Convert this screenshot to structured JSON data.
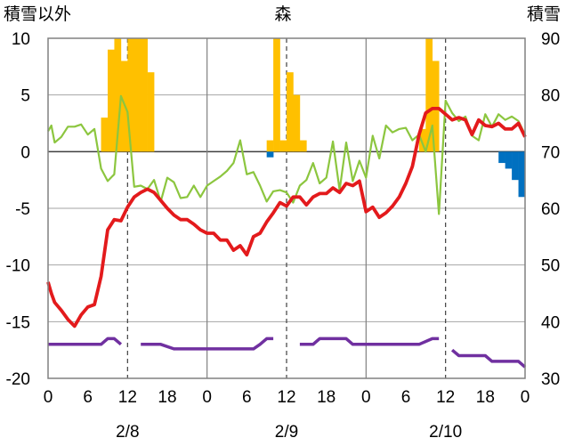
{
  "chart_data": {
    "type": "line",
    "title": "森",
    "left_axis_label": "積雪以外",
    "right_axis_label": "積雪",
    "left_ylim": [
      -20,
      10
    ],
    "left_ticks": [
      "10",
      "5",
      "0",
      "-5",
      "-10",
      "-15",
      "-20"
    ],
    "right_ylim": [
      30,
      90
    ],
    "right_ticks": [
      "90",
      "80",
      "70",
      "60",
      "50",
      "40",
      "30"
    ],
    "x_range_hours": [
      0,
      72
    ],
    "x_tick_labels": [
      "0",
      "6",
      "12",
      "18",
      "0",
      "6",
      "12",
      "18",
      "0",
      "6",
      "12",
      "18",
      "0"
    ],
    "date_labels": [
      "2/8",
      "2/9",
      "2/10"
    ],
    "grid": true,
    "series": [
      {
        "color": "#e31a1c",
        "axis": "left",
        "x": [
          0,
          0.5,
          1,
          2,
          3,
          4,
          5,
          6,
          7,
          8,
          9,
          10,
          11,
          12,
          13,
          14,
          15,
          16,
          17,
          18,
          19,
          20,
          21,
          22,
          23,
          24,
          25,
          26,
          27,
          28,
          29,
          30,
          31,
          32,
          33,
          34,
          35,
          36,
          37,
          38,
          39,
          40,
          41,
          42,
          43,
          44,
          45,
          46,
          47,
          48,
          49,
          50,
          51,
          52,
          53,
          54,
          55,
          56,
          57,
          58,
          59,
          60,
          61,
          62,
          63,
          64,
          65,
          66,
          67,
          68,
          69,
          70,
          71,
          72
        ],
        "y": [
          -11.5,
          -12.5,
          -13.3,
          -14,
          -14.8,
          -15.4,
          -14.4,
          -13.7,
          -13.5,
          -11,
          -6.9,
          -6,
          -6.1,
          -4.9,
          -4,
          -3.6,
          -3.3,
          -3.6,
          -4.3,
          -5,
          -5.6,
          -6,
          -6,
          -6.4,
          -6.9,
          -7.2,
          -7.2,
          -7.8,
          -7.8,
          -8.7,
          -8.3,
          -9.1,
          -7.5,
          -7.2,
          -6.2,
          -5.4,
          -4.5,
          -4.8,
          -4,
          -4,
          -4.7,
          -4,
          -3.7,
          -3.7,
          -3.2,
          -3.6,
          -2.8,
          -3,
          -2.6,
          -5.3,
          -4.9,
          -5.8,
          -5.4,
          -4.8,
          -4,
          -2.8,
          -1.3,
          1.5,
          3.4,
          3.8,
          3.8,
          3.3,
          2.8,
          3,
          2.8,
          1.5,
          2.8,
          2.3,
          2.2,
          2.5,
          2,
          2,
          2.5,
          1.3
        ]
      },
      {
        "color": "#8cc63f",
        "axis": "left",
        "x": [
          0,
          0.5,
          1,
          2,
          3,
          4,
          5,
          6,
          7,
          8,
          9,
          10,
          11,
          12,
          13,
          14,
          15,
          16,
          17,
          18,
          19,
          20,
          21,
          22,
          23,
          24,
          25,
          26,
          27,
          28,
          29,
          30,
          31,
          32,
          33,
          34,
          35,
          36,
          37,
          38,
          39,
          40,
          41,
          42,
          43,
          44,
          45,
          46,
          47,
          48,
          49,
          50,
          51,
          52,
          53,
          54,
          55,
          56,
          57,
          58,
          59,
          60,
          61,
          62,
          63,
          64,
          65,
          66,
          67,
          68,
          69,
          70,
          71,
          72
        ],
        "y": [
          1.8,
          2.3,
          0.8,
          1.3,
          2.2,
          2.2,
          2.4,
          1.5,
          2,
          -1.5,
          -2.6,
          -2,
          4.9,
          3.5,
          -3.1,
          -3,
          -3.3,
          -2.5,
          -4.4,
          -2.3,
          -2.7,
          -4.1,
          -4,
          -3,
          -4,
          -3,
          -2.6,
          -2.2,
          -1.7,
          -1,
          1,
          -2,
          -1.8,
          -3,
          -4.4,
          -3.5,
          -3.4,
          -3.6,
          -4.5,
          -3,
          -2.5,
          -1,
          -2.8,
          -2.3,
          0.9,
          -3.4,
          0.8,
          -2.6,
          -0.8,
          -2.3,
          1.4,
          -0.6,
          2.3,
          1.7,
          2,
          2.1,
          1,
          1.5,
          0,
          2.3,
          -5.5,
          4.5,
          3.4,
          2.7,
          3.1,
          1.4,
          1,
          3.3,
          2.2,
          3.3,
          2.8,
          3.1,
          2.7,
          1.5
        ]
      },
      {
        "color": "#7030a0",
        "axis": "left",
        "segments": [
          {
            "x": [
              0,
              3,
              6,
              8,
              9,
              10,
              11
            ],
            "y": [
              -17,
              -17,
              -17,
              -17,
              -16.5,
              -16.5,
              -17
            ]
          },
          {
            "x": [
              14,
              17,
              19,
              21,
              23,
              26,
              29,
              31,
              32,
              33,
              34
            ],
            "y": [
              -17,
              -17,
              -17.4,
              -17.4,
              -17.4,
              -17.4,
              -17.4,
              -17.4,
              -17,
              -16.5,
              -16.5
            ]
          },
          {
            "x": [
              38,
              40,
              41,
              42,
              45,
              46,
              50,
              54,
              56,
              58,
              59
            ],
            "y": [
              -17,
              -17,
              -16.5,
              -16.5,
              -16.5,
              -17,
              -17,
              -17,
              -17,
              -16.5,
              -16.5
            ]
          },
          {
            "x": [
              61,
              62,
              63,
              65,
              66,
              67,
              68,
              69,
              70,
              71,
              72
            ],
            "y": [
              -17.5,
              -18,
              -18,
              -18,
              -18,
              -18.5,
              -18.5,
              -18.5,
              -18.5,
              -18.5,
              -19
            ]
          }
        ]
      }
    ],
    "bars_up": {
      "color": "#ffc000",
      "axis": "left",
      "x": [
        8,
        9,
        10,
        11,
        12,
        13,
        14,
        15,
        33,
        34,
        35,
        36,
        37,
        38,
        56,
        57,
        58,
        59
      ],
      "values": [
        3,
        9,
        10,
        8,
        10,
        10,
        10,
        7,
        1,
        10,
        1,
        7,
        5,
        1,
        2,
        10,
        8,
        0
      ]
    },
    "bars_down": {
      "color": "#0070c0",
      "axis": "left",
      "x": [
        33,
        68,
        69,
        70,
        71
      ],
      "values": [
        -0.5,
        -1,
        -1.5,
        -2.5,
        -4
      ]
    }
  }
}
